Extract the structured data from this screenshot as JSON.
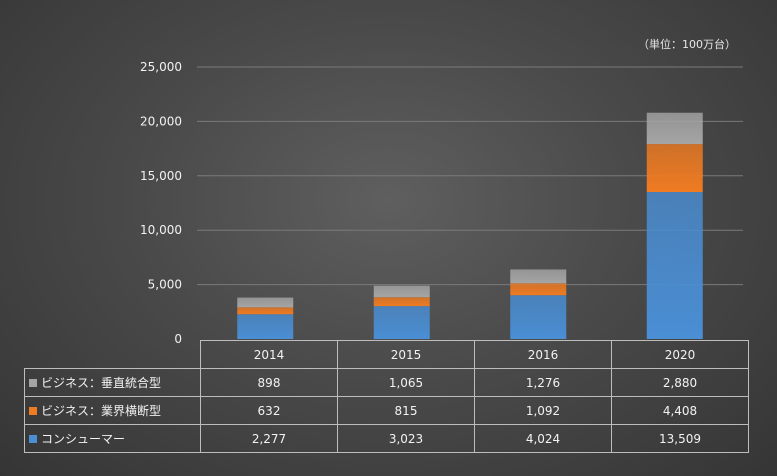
{
  "unit_note": "（単位：100万台）",
  "chart_data": {
    "type": "bar",
    "stacked": true,
    "categories": [
      "2014",
      "2015",
      "2016",
      "2020"
    ],
    "series": [
      {
        "name": "コンシューマー",
        "values": [
          2277,
          3023,
          4024,
          13509
        ],
        "color": "#4a8ed4"
      },
      {
        "name": "ビジネス：業界横断型",
        "values": [
          632,
          815,
          1092,
          4408
        ],
        "color": "#ef7b22"
      },
      {
        "name": "ビジネス：垂直統合型",
        "values": [
          898,
          1065,
          1276,
          2880
        ],
        "color": "#a5a5a5"
      }
    ],
    "ylim": [
      0,
      25000
    ],
    "yticks": [
      0,
      5000,
      10000,
      15000,
      20000,
      25000
    ],
    "ytick_labels": [
      "0",
      "5,000",
      "10,000",
      "15,000",
      "20,000",
      "25,000"
    ],
    "grid": true,
    "legend": "data-table",
    "table_rows": [
      {
        "series_index": 2,
        "label": "ビジネス：垂直統合型",
        "cells": [
          "898",
          "1,065",
          "1,276",
          "2,880"
        ]
      },
      {
        "series_index": 1,
        "label": "ビジネス：業界横断型",
        "cells": [
          "632",
          "815",
          "1,092",
          "4,408"
        ]
      },
      {
        "series_index": 0,
        "label": "コンシューマー",
        "cells": [
          "2,277",
          "3,023",
          "4,024",
          "13,509"
        ]
      }
    ]
  }
}
